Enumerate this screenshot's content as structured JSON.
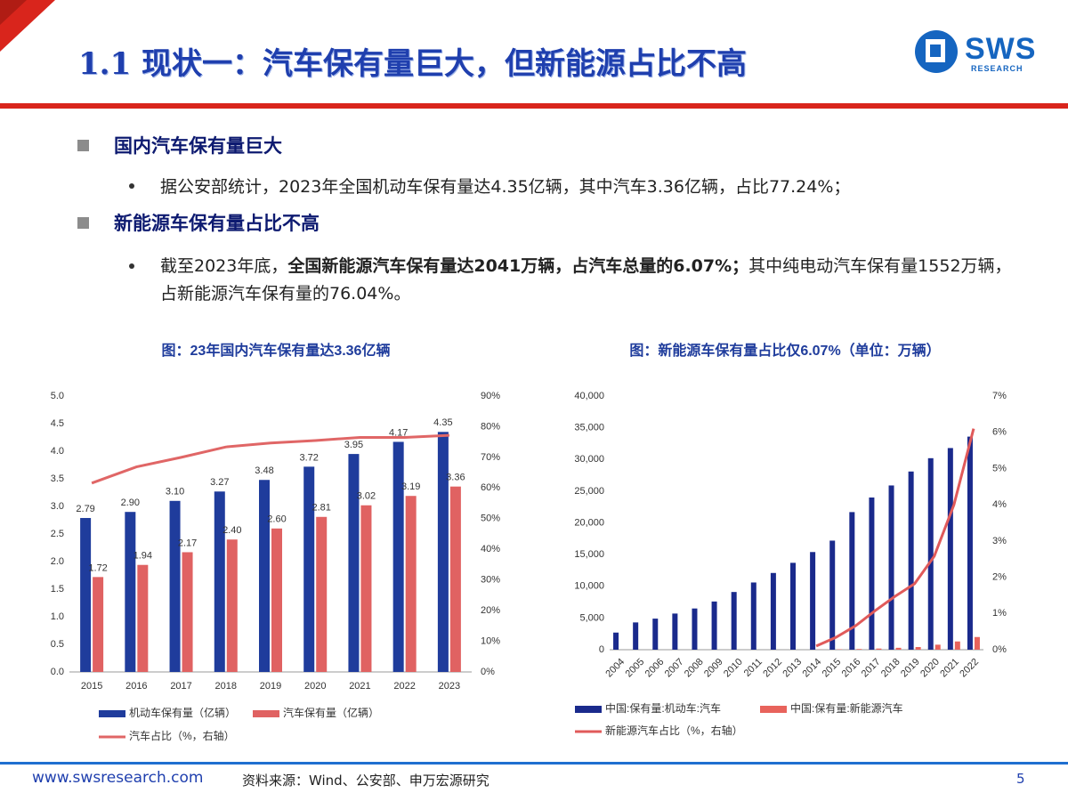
{
  "header": {
    "title": "1.1 现状一：汽车保有量巨大，但新能源占比不高",
    "logo": "SWS",
    "logo_sub": "RESEARCH"
  },
  "bullets": [
    {
      "heading": "国内汽车保有量巨大",
      "items": [
        {
          "parts": [
            {
              "text": "据公安部统计，2023年全国机动车保有量达4.35亿辆，其中汽车3.36亿辆，占比77.24%；",
              "bold": false
            }
          ]
        }
      ]
    },
    {
      "heading": "新能源车保有量占比不高",
      "items": [
        {
          "parts": [
            {
              "text": "截至2023年底，",
              "bold": false
            },
            {
              "text": "全国新能源汽车保有量达2041万辆，占汽车总量的6.07%；",
              "bold": true
            },
            {
              "text": "其中纯电动汽车保有量1552万辆，占新能源汽车保有量的76.04%。",
              "bold": false
            }
          ]
        }
      ]
    }
  ],
  "chart_data": [
    {
      "type": "bar",
      "title": "图：23年国内汽车保有量达3.36亿辆",
      "categories": [
        "2015",
        "2016",
        "2017",
        "2018",
        "2019",
        "2020",
        "2021",
        "2022",
        "2023"
      ],
      "series": [
        {
          "name": "机动车保有量（亿辆）",
          "color": "#1f3c9c",
          "values": [
            2.79,
            2.9,
            3.1,
            3.27,
            3.48,
            3.72,
            3.95,
            4.17,
            4.35
          ],
          "value_labels": [
            "2.79",
            "2.90",
            "3.10",
            "3.27",
            "3.48",
            "3.72",
            "3.95",
            "4.17",
            "4.35"
          ]
        },
        {
          "name": "汽车保有量（亿辆）",
          "color": "#e06262",
          "values": [
            1.72,
            1.94,
            2.17,
            2.4,
            2.6,
            2.81,
            3.02,
            3.19,
            3.36
          ],
          "value_labels": [
            "1.72",
            "1.94",
            "2.17",
            "2.40",
            "2.60",
            "2.81",
            "3.02",
            "3.19",
            "3.36"
          ]
        },
        {
          "name": "汽车占比（%，右轴）",
          "color": "#e06666",
          "axis": "y2",
          "values": [
            61.6,
            66.9,
            70.0,
            73.4,
            74.7,
            75.5,
            76.5,
            76.5,
            77.2
          ]
        }
      ],
      "ylim": [
        0,
        5
      ],
      "yticks": [
        {
          "value": 0,
          "label": "0.0"
        },
        {
          "value": 0.5,
          "label": "0.5"
        },
        {
          "value": 1,
          "label": "1.0"
        },
        {
          "value": 1.5,
          "label": "1.5"
        },
        {
          "value": 2,
          "label": "2.0"
        },
        {
          "value": 2.5,
          "label": "2.5"
        },
        {
          "value": 3,
          "label": "3.0"
        },
        {
          "value": 3.5,
          "label": "3.5"
        },
        {
          "value": 4,
          "label": "4.0"
        },
        {
          "value": 4.5,
          "label": "4.5"
        },
        {
          "value": 5,
          "label": "5.0"
        }
      ],
      "y2lim": [
        0,
        90
      ],
      "y2ticks": [
        {
          "value": 0,
          "label": "0%"
        },
        {
          "value": 10,
          "label": "10%"
        },
        {
          "value": 20,
          "label": "20%"
        },
        {
          "value": 30,
          "label": "30%"
        },
        {
          "value": 40,
          "label": "40%"
        },
        {
          "value": 50,
          "label": "50%"
        },
        {
          "value": 60,
          "label": "60%"
        },
        {
          "value": 70,
          "label": "70%"
        },
        {
          "value": 80,
          "label": "80%"
        },
        {
          "value": 90,
          "label": "90%"
        }
      ],
      "grid": false,
      "legend": "bottom"
    },
    {
      "type": "bar",
      "title": "图：新能源车保有量占比仅6.07%（单位：万辆）",
      "categories": [
        "2004",
        "2005",
        "2006",
        "2007",
        "2008",
        "2009",
        "2010",
        "2011",
        "2012",
        "2013",
        "2014",
        "2015",
        "2016",
        "2017",
        "2018",
        "2019",
        "2020",
        "2021",
        "2022"
      ],
      "series": [
        {
          "name": "中国:保有量:机动车:汽车",
          "color": "#1a2a8c",
          "values": [
            2700,
            4300,
            4900,
            5700,
            6500,
            7600,
            9100,
            10600,
            12100,
            13700,
            15400,
            17200,
            21700,
            24000,
            25900,
            28100,
            30200,
            31800,
            33600
          ]
        },
        {
          "name": "中国:保有量:新能源汽车",
          "color": "#e8635c",
          "values": [
            null,
            null,
            null,
            null,
            null,
            null,
            null,
            null,
            null,
            null,
            22,
            58,
            109,
            180,
            300,
            420,
            790,
            1300,
            2000
          ]
        },
        {
          "name": "新能源汽车占比（%，右轴）",
          "color": "#e05a5a",
          "axis": "y2",
          "values": [
            null,
            null,
            null,
            null,
            null,
            null,
            null,
            null,
            null,
            null,
            0.1,
            0.34,
            0.66,
            1.08,
            1.47,
            1.82,
            2.58,
            4.0,
            6.1
          ]
        }
      ],
      "ylim": [
        0,
        40000
      ],
      "yticks": [
        0,
        {
          "value": 5000,
          "label": "5,000"
        },
        {
          "value": 10000,
          "label": "10,000"
        },
        {
          "value": 15000,
          "label": "15,000"
        },
        {
          "value": 20000,
          "label": "20,000"
        },
        {
          "value": 25000,
          "label": "25,000"
        },
        {
          "value": 30000,
          "label": "30,000"
        },
        {
          "value": 35000,
          "label": "35,000"
        },
        {
          "value": 40000,
          "label": "40,000"
        }
      ],
      "y2lim": [
        0,
        7
      ],
      "y2ticks": [
        {
          "value": 0,
          "label": "0%"
        },
        {
          "value": 1,
          "label": "1%"
        },
        {
          "value": 2,
          "label": "2%"
        },
        {
          "value": 3,
          "label": "3%"
        },
        {
          "value": 4,
          "label": "4%"
        },
        {
          "value": 5,
          "label": "5%"
        },
        {
          "value": 6,
          "label": "6%"
        },
        {
          "value": 7,
          "label": "7%"
        }
      ],
      "grid": false,
      "legend": "bottom"
    }
  ],
  "footer": {
    "url": "www.swsresearch.com",
    "source": "资料来源：Wind、公安部、申万宏源研究",
    "page": "5"
  }
}
